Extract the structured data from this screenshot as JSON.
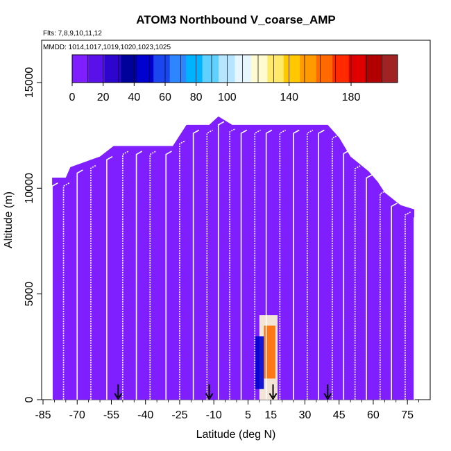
{
  "chart_data": {
    "type": "heatmap",
    "title": "ATOM3 Northbound V_coarse_AMP",
    "flights_label": "Flts: 7,8,9,10,11,12",
    "dates_label": "MMDD: 1014,1017,1019,1020,1023,1025",
    "xlabel": "Latitude (deg N)",
    "ylabel": "Altitude (m)",
    "xlim": [
      -85,
      85
    ],
    "ylim": [
      0,
      17000
    ],
    "x_ticks": [
      -85,
      -70,
      -55,
      -40,
      -25,
      -10,
      5,
      15,
      30,
      45,
      60,
      75
    ],
    "y_ticks": [
      0,
      5000,
      10000,
      15000
    ],
    "colorbar": {
      "range": [
        0,
        210
      ],
      "ticks": [
        0,
        20,
        40,
        60,
        80,
        100,
        140,
        180
      ],
      "colors": [
        "#7f1fff",
        "#5a10e8",
        "#2c06cc",
        "#00009a",
        "#0000cf",
        "#1a46f0",
        "#2e86ff",
        "#00b3ff",
        "#5fd0ff",
        "#b6e6ff",
        "#e8f6ff",
        "#fffbd0",
        "#ffe96a",
        "#ffc800",
        "#ff9a00",
        "#ff6a00",
        "#ff2a00",
        "#e00000",
        "#b00000",
        "#a02222"
      ]
    },
    "background_color": "#7f1fff",
    "envelope": [
      [
        -81,
        10500
      ],
      [
        -75,
        10500
      ],
      [
        -73,
        11000
      ],
      [
        -60,
        11500
      ],
      [
        -54,
        12000
      ],
      [
        -38,
        12000
      ],
      [
        -28,
        12000
      ],
      [
        -22,
        13000
      ],
      [
        -12,
        13000
      ],
      [
        -8,
        13400
      ],
      [
        -2,
        13000
      ],
      [
        2,
        13000
      ],
      [
        40,
        13000
      ],
      [
        45,
        12400
      ],
      [
        50,
        11500
      ],
      [
        58,
        10800
      ],
      [
        62,
        10300
      ],
      [
        65,
        9800
      ],
      [
        72,
        9200
      ],
      [
        78,
        9000
      ]
    ],
    "enhanced_regions": [
      {
        "lat": [
          10,
          18
        ],
        "alt": [
          0,
          4000
        ],
        "value": 120
      },
      {
        "lat": [
          8,
          12
        ],
        "alt": [
          500,
          3000
        ],
        "value": 45
      },
      {
        "lat": [
          12,
          17
        ],
        "alt": [
          1000,
          3500
        ],
        "value": 160
      }
    ],
    "profile_latitudes": [
      -81,
      -76,
      -70,
      -64,
      -57,
      -50,
      -44,
      -38,
      -31,
      -25,
      -19,
      -13,
      -8,
      -3,
      2,
      8,
      13,
      19,
      25,
      31,
      36,
      42,
      47,
      52,
      57,
      63,
      68,
      74,
      78
    ],
    "arrow_latitudes": [
      -52,
      -12,
      16,
      40
    ]
  }
}
